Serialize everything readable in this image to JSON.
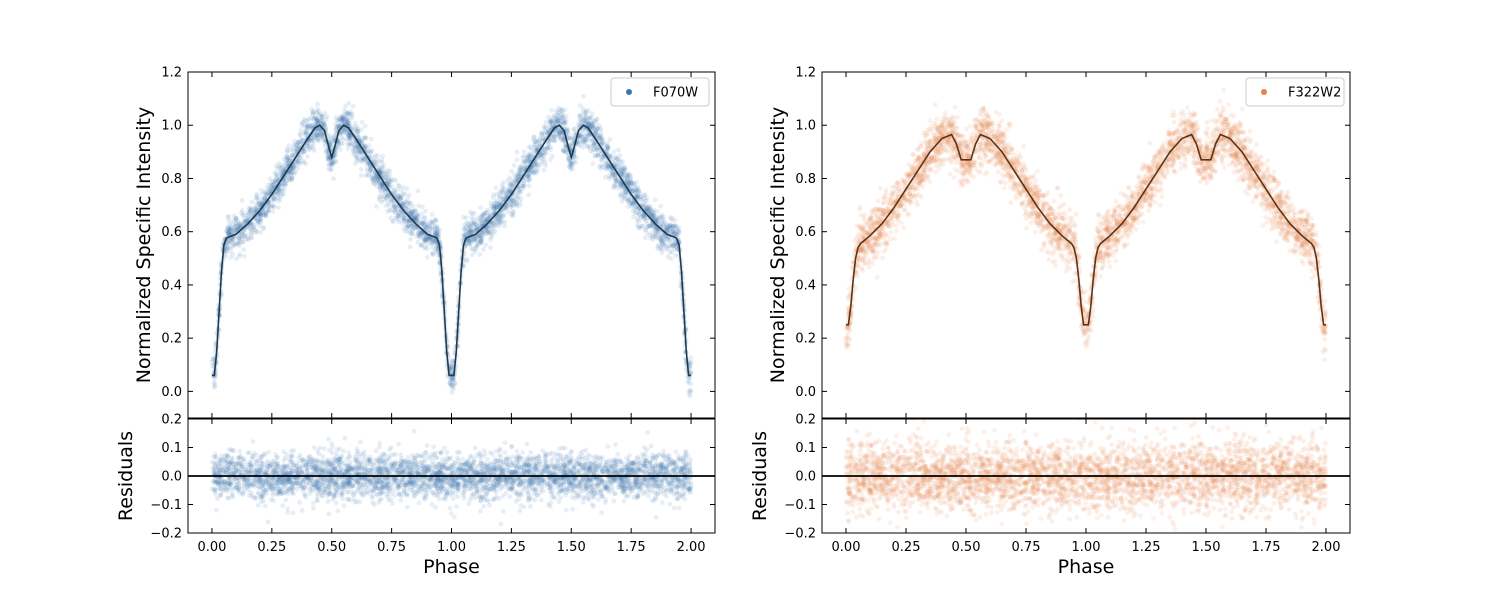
{
  "chart_data": [
    {
      "type": "scatter",
      "title": "",
      "panel": "left",
      "filter": "F070W",
      "legend": {
        "label": "F070W",
        "placement": "top-right"
      },
      "colors": {
        "data": "#3a77b0",
        "model": "#1f3a4d"
      },
      "main": {
        "ylabel": "Normalized Specific Intensity",
        "xlim": [
          -0.1,
          2.1
        ],
        "ylim": [
          -0.1,
          1.2
        ],
        "yticks": [
          "0.0",
          "0.2",
          "0.4",
          "0.6",
          "0.8",
          "1.0",
          "1.2"
        ],
        "series": [
          {
            "name": "model",
            "kind": "line",
            "x": [
              0.0,
              0.01,
              0.02,
              0.03,
              0.04,
              0.05,
              0.06,
              0.07,
              0.1,
              0.15,
              0.2,
              0.25,
              0.3,
              0.35,
              0.4,
              0.43,
              0.45,
              0.47,
              0.49,
              0.5,
              0.51,
              0.53,
              0.55,
              0.57,
              0.6,
              0.65,
              0.7,
              0.75,
              0.8,
              0.85,
              0.9,
              0.93,
              0.94,
              0.95,
              0.96,
              0.97,
              0.98,
              0.99,
              1.0
            ],
            "y": [
              0.06,
              0.06,
              0.15,
              0.3,
              0.45,
              0.55,
              0.575,
              0.58,
              0.59,
              0.63,
              0.68,
              0.74,
              0.81,
              0.88,
              0.95,
              0.99,
              1.0,
              0.98,
              0.91,
              0.88,
              0.91,
              0.98,
              1.0,
              0.99,
              0.95,
              0.88,
              0.81,
              0.74,
              0.68,
              0.63,
              0.59,
              0.58,
              0.575,
              0.55,
              0.45,
              0.3,
              0.15,
              0.06,
              0.06
            ],
            "period_repeat": true
          },
          {
            "name": "F070W",
            "kind": "scatter",
            "points": 4000,
            "scatter_sigma": 0.035
          }
        ]
      },
      "residuals": {
        "ylabel": "Residuals",
        "ylim": [
          -0.2,
          0.2
        ],
        "yticks": [
          "−0.2",
          "−0.1",
          "0.0",
          "0.1",
          "0.2"
        ],
        "zero_line": 0.0,
        "scatter_sigma": 0.04
      },
      "xlabel": "Phase",
      "xticks": [
        "0.00",
        "0.25",
        "0.50",
        "0.75",
        "1.00",
        "1.25",
        "1.50",
        "1.75",
        "2.00"
      ]
    },
    {
      "type": "scatter",
      "title": "",
      "panel": "right",
      "filter": "F322W2",
      "legend": {
        "label": "F322W2",
        "placement": "top-right"
      },
      "colors": {
        "data": "#e8844a",
        "model": "#5a3318"
      },
      "main": {
        "ylabel": "Normalized Specific Intensity",
        "xlim": [
          -0.1,
          2.1
        ],
        "ylim": [
          -0.1,
          1.2
        ],
        "yticks": [
          "0.0",
          "0.2",
          "0.4",
          "0.6",
          "0.8",
          "1.0",
          "1.2"
        ],
        "series": [
          {
            "name": "model",
            "kind": "line",
            "x": [
              0.0,
              0.01,
              0.02,
              0.03,
              0.04,
              0.05,
              0.06,
              0.1,
              0.15,
              0.2,
              0.25,
              0.3,
              0.35,
              0.4,
              0.44,
              0.46,
              0.48,
              0.5,
              0.52,
              0.54,
              0.56,
              0.6,
              0.65,
              0.7,
              0.75,
              0.8,
              0.85,
              0.9,
              0.94,
              0.95,
              0.96,
              0.97,
              0.98,
              0.99,
              1.0
            ],
            "y": [
              0.25,
              0.25,
              0.32,
              0.42,
              0.5,
              0.54,
              0.555,
              0.585,
              0.63,
              0.69,
              0.76,
              0.83,
              0.9,
              0.95,
              0.965,
              0.93,
              0.87,
              0.87,
              0.87,
              0.93,
              0.965,
              0.95,
              0.9,
              0.83,
              0.76,
              0.69,
              0.63,
              0.585,
              0.555,
              0.54,
              0.5,
              0.42,
              0.32,
              0.25,
              0.25
            ],
            "period_repeat": true
          },
          {
            "name": "F322W2",
            "kind": "scatter",
            "points": 4000,
            "scatter_sigma": 0.05
          }
        ]
      },
      "residuals": {
        "ylabel": "Residuals",
        "ylim": [
          -0.2,
          0.2
        ],
        "yticks": [
          "−0.2",
          "−0.1",
          "0.0",
          "0.1",
          "0.2"
        ],
        "zero_line": 0.0,
        "scatter_sigma": 0.06
      },
      "xlabel": "Phase",
      "xticks": [
        "0.00",
        "0.25",
        "0.50",
        "0.75",
        "1.00",
        "1.25",
        "1.50",
        "1.75",
        "2.00"
      ]
    }
  ]
}
